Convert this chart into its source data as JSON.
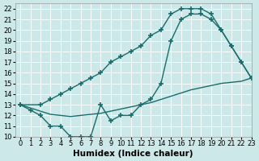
{
  "xlabel": "Humidex (Indice chaleur)",
  "xlim": [
    -0.5,
    23
  ],
  "ylim": [
    10,
    22.5
  ],
  "xticks": [
    0,
    1,
    2,
    3,
    4,
    5,
    6,
    7,
    8,
    9,
    10,
    11,
    12,
    13,
    14,
    15,
    16,
    17,
    18,
    19,
    20,
    21,
    22,
    23
  ],
  "yticks": [
    10,
    11,
    12,
    13,
    14,
    15,
    16,
    17,
    18,
    19,
    20,
    21,
    22
  ],
  "bg_color": "#cce8e8",
  "line_color": "#1a6b6b",
  "line1_x": [
    0,
    1,
    2,
    3,
    4,
    5,
    6,
    7,
    8,
    9,
    10,
    11,
    12,
    13,
    14,
    15,
    16,
    17,
    18,
    19,
    20,
    21,
    22,
    23
  ],
  "line1_y": [
    13,
    12.5,
    12,
    11,
    11,
    10,
    10,
    10,
    13,
    11.5,
    12,
    12,
    13,
    13.5,
    15,
    19,
    21,
    21.5,
    21.5,
    21,
    20,
    18.5,
    17,
    15.5
  ],
  "line2_x": [
    0,
    2,
    3,
    4,
    5,
    6,
    7,
    8,
    9,
    10,
    11,
    12,
    13,
    14,
    15,
    16,
    17,
    18,
    19,
    20,
    21,
    22,
    23
  ],
  "line2_y": [
    13,
    13,
    13.5,
    14,
    14.5,
    15,
    15.5,
    16,
    17,
    17.5,
    18,
    18.5,
    19.5,
    20,
    21.5,
    22,
    22,
    22,
    21.5,
    20,
    18.5,
    17,
    15.5
  ],
  "line3_x": [
    0,
    1,
    2,
    3,
    4,
    5,
    6,
    7,
    8,
    9,
    10,
    11,
    12,
    13,
    14,
    15,
    16,
    17,
    18,
    19,
    20,
    21,
    22,
    23
  ],
  "line3_y": [
    13,
    12.7,
    12.4,
    12.1,
    12,
    11.9,
    12,
    12.1,
    12.2,
    12.4,
    12.6,
    12.8,
    13,
    13.2,
    13.5,
    13.8,
    14.1,
    14.4,
    14.6,
    14.8,
    15.0,
    15.1,
    15.2,
    15.5
  ],
  "marker": "+",
  "markersize": 4.0,
  "linewidth": 1.0,
  "tick_fontsize": 6.0,
  "label_fontsize": 7.5
}
